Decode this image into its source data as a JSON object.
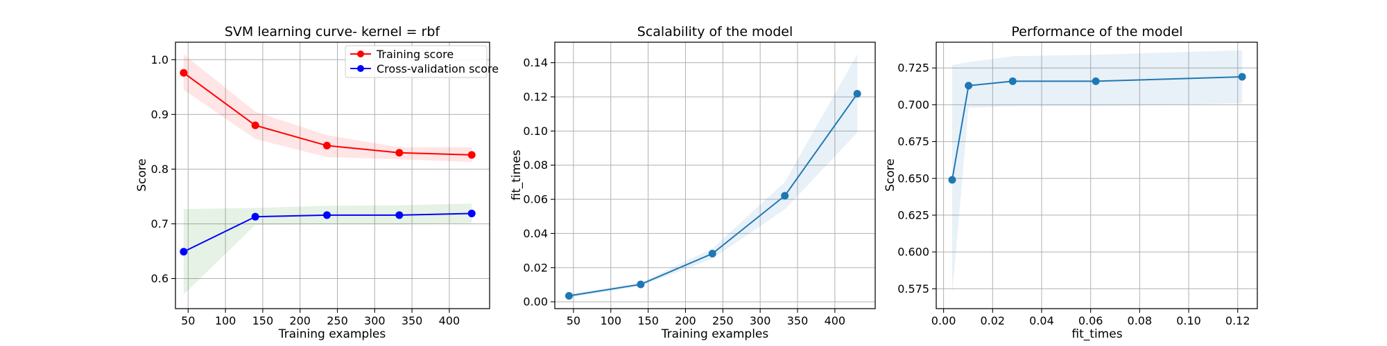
{
  "chart_data": [
    {
      "type": "line",
      "title": "SVM learning curve- kernel = rbf",
      "xlabel": "Training examples",
      "ylabel": "Score",
      "xlim": [
        33,
        454
      ],
      "ylim": [
        0.545,
        1.032
      ],
      "xticks": [
        50,
        100,
        150,
        200,
        250,
        300,
        350,
        400
      ],
      "yticks": [
        0.6,
        0.7,
        0.8,
        0.9,
        1.0
      ],
      "ytick_labels": [
        "0.6",
        "0.7",
        "0.8",
        "0.9",
        "1.0"
      ],
      "grid": true,
      "legend": "top-right",
      "x": [
        44,
        140,
        236,
        333,
        430
      ],
      "series": [
        {
          "name": "Training score",
          "color": "#ff0000",
          "band_color": "#ff0000",
          "values": [
            0.976,
            0.88,
            0.843,
            0.83,
            0.826
          ],
          "upper": [
            1.01,
            0.905,
            0.862,
            0.84,
            0.84
          ],
          "lower": [
            0.945,
            0.855,
            0.822,
            0.818,
            0.813
          ]
        },
        {
          "name": "Cross-validation score",
          "color": "#0000ff",
          "band_color": "#008000",
          "values": [
            0.649,
            0.713,
            0.716,
            0.716,
            0.719
          ],
          "upper": [
            0.727,
            0.729,
            0.733,
            0.734,
            0.737
          ],
          "lower": [
            0.571,
            0.698,
            0.699,
            0.699,
            0.701
          ]
        }
      ]
    },
    {
      "type": "line",
      "title": "Scalability of the model",
      "xlabel": "Training examples",
      "ylabel": "fit_times",
      "xlim": [
        25,
        454
      ],
      "ylim": [
        -0.004,
        0.152
      ],
      "xticks": [
        50,
        100,
        150,
        200,
        250,
        300,
        350,
        400
      ],
      "yticks": [
        0.0,
        0.02,
        0.04,
        0.06,
        0.08,
        0.1,
        0.12,
        0.14
      ],
      "ytick_labels": [
        "0.00",
        "0.02",
        "0.04",
        "0.06",
        "0.08",
        "0.10",
        "0.12",
        "0.14"
      ],
      "grid": true,
      "x": [
        44,
        140,
        236,
        333,
        430
      ],
      "series": [
        {
          "color": "#1f77b4",
          "band_color": "#1f77b4",
          "values": [
            0.0035,
            0.0102,
            0.0282,
            0.0621,
            0.1218
          ],
          "upper": [
            0.0045,
            0.0112,
            0.0312,
            0.0701,
            0.145
          ],
          "lower": [
            0.0025,
            0.0092,
            0.0252,
            0.0541,
            0.099
          ]
        }
      ]
    },
    {
      "type": "line",
      "title": "Performance of the model",
      "xlabel": "fit_times",
      "ylabel": "Score",
      "xlim": [
        -0.003,
        0.128
      ],
      "ylim": [
        0.5615,
        0.7425
      ],
      "xticks": [
        0.0,
        0.02,
        0.04,
        0.06,
        0.08,
        0.1,
        0.12
      ],
      "xtick_labels": [
        "0.00",
        "0.02",
        "0.04",
        "0.06",
        "0.08",
        "0.10",
        "0.12"
      ],
      "yticks": [
        0.575,
        0.6,
        0.625,
        0.65,
        0.675,
        0.7,
        0.725
      ],
      "ytick_labels": [
        "0.575",
        "0.600",
        "0.625",
        "0.650",
        "0.675",
        "0.700",
        "0.725"
      ],
      "grid": true,
      "x": [
        0.0035,
        0.0102,
        0.0282,
        0.0621,
        0.1218
      ],
      "series": [
        {
          "color": "#1f77b4",
          "band_color": "#1f77b4",
          "values": [
            0.649,
            0.713,
            0.716,
            0.716,
            0.719
          ],
          "upper": [
            0.727,
            0.729,
            0.733,
            0.734,
            0.737
          ],
          "lower": [
            0.571,
            0.698,
            0.699,
            0.699,
            0.701
          ]
        }
      ]
    }
  ]
}
